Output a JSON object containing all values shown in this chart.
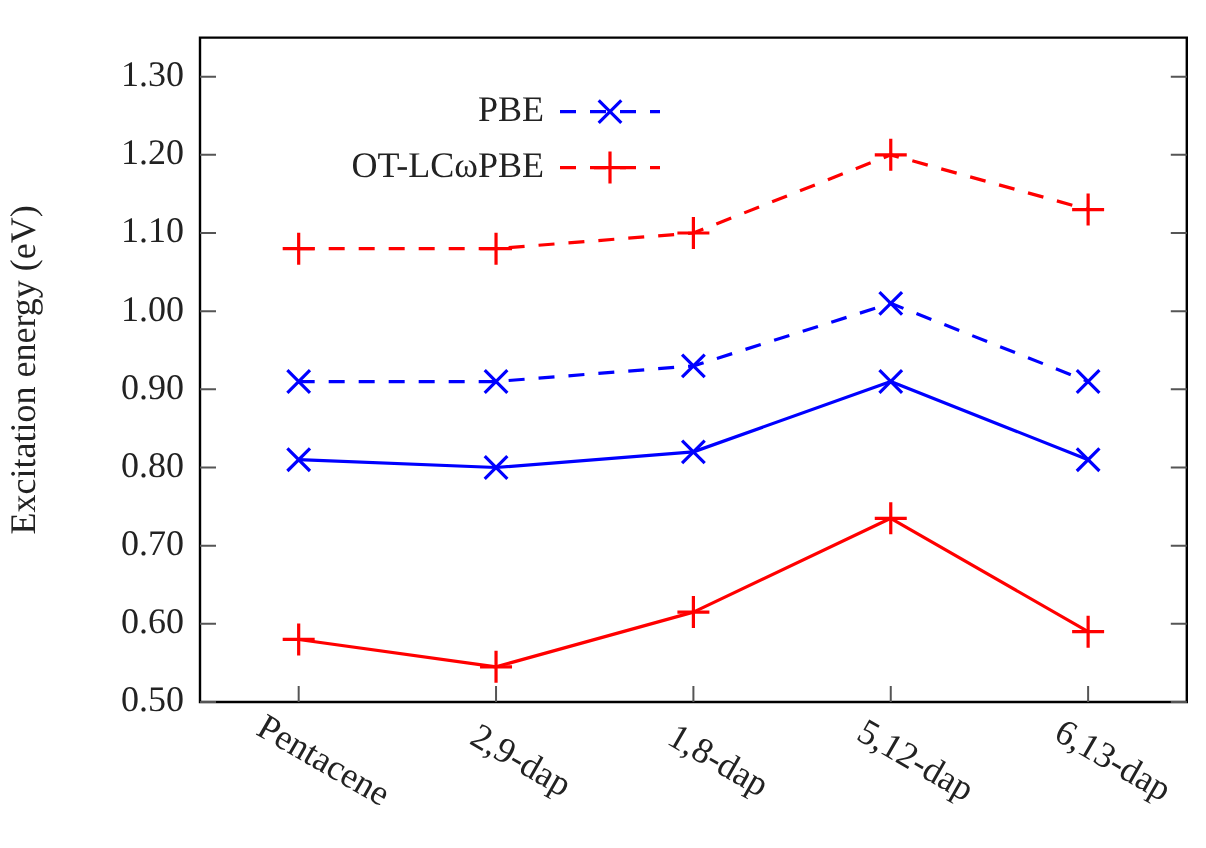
{
  "chart_data": {
    "type": "line",
    "ylabel": "Excitation energy (eV)",
    "categories": [
      "Pentacene",
      "2,9-dap",
      "1,8-dap",
      "5,12-dap",
      "6,13-dap"
    ],
    "series": [
      {
        "name": "PBE",
        "color": "#0000ff",
        "values": [
          0.91,
          0.91,
          0.93,
          1.01,
          0.91
        ],
        "line_style": "dashed",
        "marker": "x"
      },
      {
        "name": "OT-LCωPBE",
        "color": "#ff0000",
        "values": [
          1.08,
          1.08,
          1.1,
          1.2,
          1.13
        ],
        "line_style": "dashed",
        "marker": "cross"
      },
      {
        "color": "#0000ff",
        "values": [
          0.81,
          0.8,
          0.82,
          0.91,
          0.81
        ],
        "line_style": "solid",
        "marker": "x"
      },
      {
        "color": "#ff0000",
        "values": [
          0.58,
          0.545,
          0.615,
          0.735,
          0.59
        ],
        "line_style": "solid",
        "marker": "cross"
      }
    ],
    "ylim": [
      0.5,
      1.35
    ],
    "yticks": [
      {
        "value": 0.5,
        "label": "0.50"
      },
      {
        "value": 0.6,
        "label": "0.60"
      },
      {
        "value": 0.7,
        "label": "0.70"
      },
      {
        "value": 0.8,
        "label": "0.80"
      },
      {
        "value": 0.9,
        "label": "0.90"
      },
      {
        "value": 1.0,
        "label": "1.00"
      },
      {
        "value": 1.1,
        "label": "1.10"
      },
      {
        "value": 1.2,
        "label": "1.20"
      },
      {
        "value": 1.3,
        "label": "1.30"
      }
    ],
    "grid": false,
    "legend": "top left"
  }
}
